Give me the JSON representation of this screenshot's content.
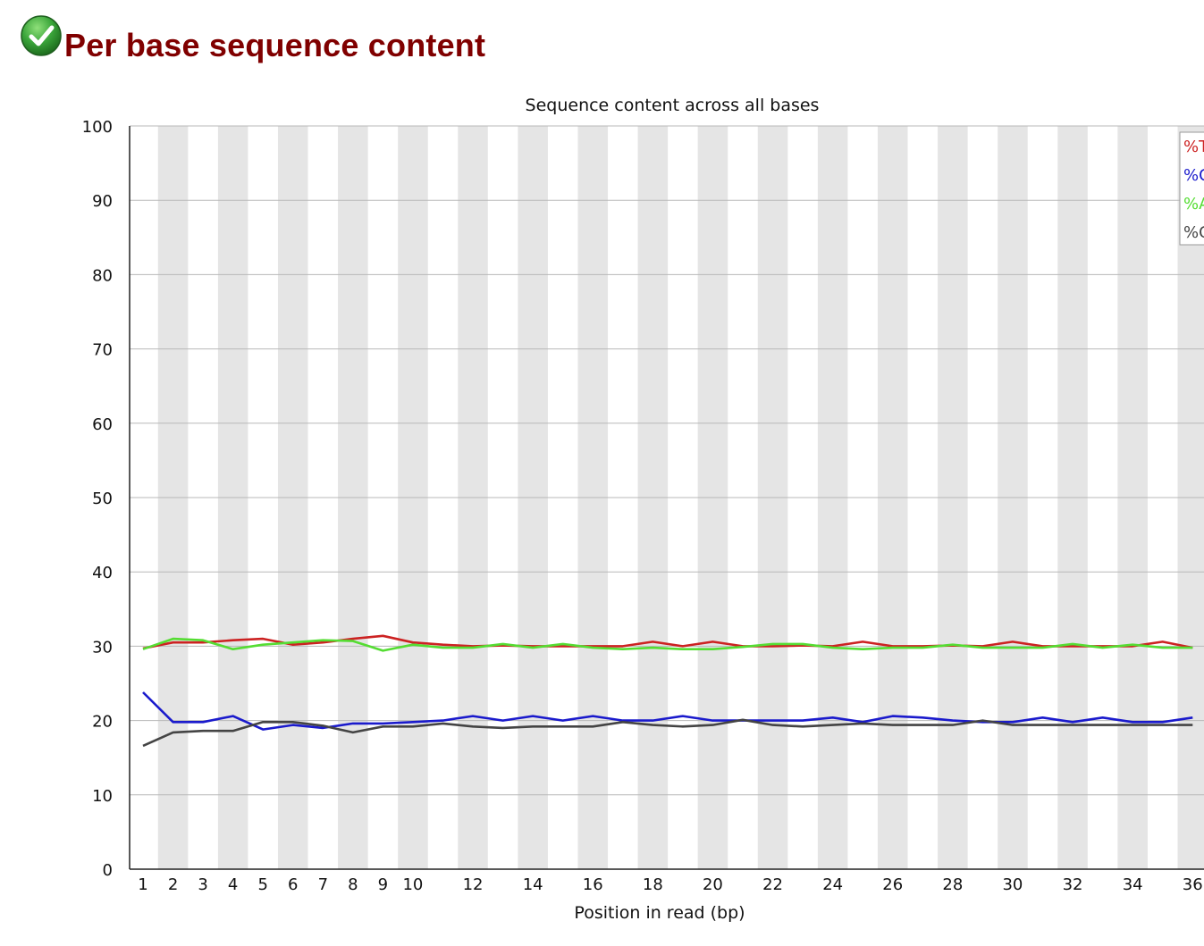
{
  "page": {
    "title": "Per base sequence content",
    "status_icon": "check-circle-icon",
    "status_color": "#3aa53a",
    "title_color": "#800000"
  },
  "chart_data": {
    "type": "line",
    "title": "Sequence content across all bases",
    "xlabel": "Position in read (bp)",
    "ylabel": "",
    "ylim": [
      0,
      100
    ],
    "yticks": [
      "0",
      "10",
      "20",
      "30",
      "40",
      "50",
      "60",
      "70",
      "80",
      "90",
      "100"
    ],
    "x": [
      1,
      2,
      3,
      4,
      5,
      6,
      7,
      8,
      9,
      10,
      11,
      12,
      13,
      14,
      15,
      16,
      17,
      18,
      19,
      20,
      21,
      22,
      23,
      24,
      25,
      26,
      27,
      28,
      29,
      30,
      31,
      32,
      33,
      34,
      35,
      36
    ],
    "xtick_labels": [
      "1",
      "2",
      "3",
      "4",
      "5",
      "6",
      "7",
      "8",
      "9",
      "10",
      "12",
      "14",
      "16",
      "18",
      "20",
      "22",
      "24",
      "26",
      "28",
      "30",
      "32",
      "34",
      "36"
    ],
    "grid": "horizontal lines with alternating grey vertical bands",
    "legend_position": "top-right (clipped)",
    "legend_labels": [
      "%T",
      "%C",
      "%A",
      "%G"
    ],
    "series": [
      {
        "name": "%T",
        "color": "#cc2222",
        "values": [
          29.7,
          30.5,
          30.5,
          30.8,
          31.0,
          30.2,
          30.5,
          31.0,
          31.4,
          30.5,
          30.2,
          30.0,
          30.1,
          30.0,
          30.0,
          30.0,
          30.0,
          30.6,
          30.0,
          30.6,
          30.0,
          30.0,
          30.1,
          30.0,
          30.6,
          30.0,
          30.0,
          30.1,
          30.0,
          30.6,
          30.0,
          30.0,
          30.0,
          30.0,
          30.6,
          29.8
        ]
      },
      {
        "name": "%C",
        "color": "#1a1acc",
        "values": [
          23.8,
          19.8,
          19.8,
          20.6,
          18.8,
          19.4,
          19.0,
          19.6,
          19.6,
          19.8,
          20.0,
          20.6,
          20.0,
          20.6,
          20.0,
          20.6,
          20.0,
          20.0,
          20.6,
          20.0,
          20.0,
          20.0,
          20.0,
          20.4,
          19.8,
          20.6,
          20.4,
          20.0,
          19.8,
          19.8,
          20.4,
          19.8,
          20.4,
          19.8,
          19.8,
          20.4
        ]
      },
      {
        "name": "%A",
        "color": "#55dd33",
        "values": [
          29.6,
          31.0,
          30.8,
          29.6,
          30.2,
          30.5,
          30.8,
          30.7,
          29.4,
          30.2,
          29.8,
          29.8,
          30.3,
          29.8,
          30.3,
          29.8,
          29.6,
          29.8,
          29.6,
          29.6,
          29.9,
          30.3,
          30.3,
          29.8,
          29.6,
          29.8,
          29.8,
          30.2,
          29.8,
          29.8,
          29.8,
          30.3,
          29.8,
          30.2,
          29.8,
          29.8
        ]
      },
      {
        "name": "%G",
        "color": "#444444",
        "values": [
          16.6,
          18.4,
          18.6,
          18.6,
          19.8,
          19.8,
          19.3,
          18.4,
          19.2,
          19.2,
          19.6,
          19.2,
          19.0,
          19.2,
          19.2,
          19.2,
          19.8,
          19.4,
          19.2,
          19.4,
          20.1,
          19.4,
          19.2,
          19.4,
          19.6,
          19.4,
          19.4,
          19.4,
          20.0,
          19.4,
          19.4,
          19.4,
          19.4,
          19.4,
          19.4,
          19.4
        ]
      }
    ]
  }
}
